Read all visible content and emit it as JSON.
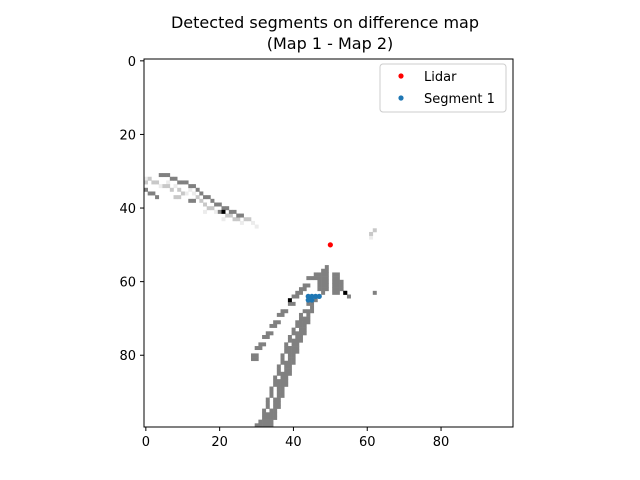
{
  "chart_data": {
    "type": "heatmap",
    "title_line1": "Detected segments on difference map",
    "title_line2": "(Map 1 - Map 2)",
    "xlabel": "",
    "ylabel": "",
    "xlim": [
      -0.5,
      99.5
    ],
    "ylim": [
      99.5,
      -0.5
    ],
    "x_ticks": [
      0,
      20,
      40,
      60,
      80
    ],
    "y_ticks": [
      0,
      20,
      40,
      60,
      80
    ],
    "x_tick_labels": [
      "0",
      "20",
      "40",
      "60",
      "80"
    ],
    "y_tick_labels": [
      "0",
      "20",
      "40",
      "60",
      "80"
    ],
    "grid": false,
    "legend_placement": "top-right",
    "legend": [
      {
        "label": "Lidar",
        "color": "#ff0000"
      },
      {
        "label": "Segment 1",
        "color": "#1f77b4"
      }
    ],
    "lidar_point": {
      "x": 50,
      "y": 50
    },
    "segment1_points": [
      [
        44,
        65
      ],
      [
        45,
        65
      ],
      [
        45,
        64
      ],
      [
        46,
        64
      ],
      [
        47,
        64
      ],
      [
        44,
        64
      ]
    ],
    "colors": {
      "dark": "#808080",
      "light": "#c8c8c8",
      "faint": "#ececec",
      "black": "#000000",
      "lidar": "#ff0000",
      "segment": "#1f77b4"
    },
    "cells": {
      "dark": [
        [
          4,
          31
        ],
        [
          5,
          31
        ],
        [
          6,
          31
        ],
        [
          7,
          32
        ],
        [
          8,
          32
        ],
        [
          9,
          33
        ],
        [
          10,
          33
        ],
        [
          11,
          33
        ],
        [
          12,
          34
        ],
        [
          13,
          34
        ],
        [
          14,
          35
        ],
        [
          15,
          36
        ],
        [
          16,
          37
        ],
        [
          17,
          37
        ],
        [
          18,
          38
        ],
        [
          19,
          39
        ],
        [
          20,
          39
        ],
        [
          21,
          40
        ],
        [
          22,
          40
        ],
        [
          23,
          41
        ],
        [
          24,
          41
        ],
        [
          25,
          42
        ],
        [
          26,
          42
        ],
        [
          0,
          35
        ],
        [
          1,
          36
        ],
        [
          2,
          36
        ],
        [
          3,
          37
        ],
        [
          12,
          38
        ],
        [
          13,
          38
        ],
        [
          20,
          41
        ],
        [
          46,
          58
        ],
        [
          46,
          59
        ],
        [
          47,
          58
        ],
        [
          47,
          59
        ],
        [
          47,
          60
        ],
        [
          47,
          61
        ],
        [
          47,
          62
        ],
        [
          48,
          57
        ],
        [
          48,
          58
        ],
        [
          48,
          59
        ],
        [
          48,
          60
        ],
        [
          48,
          61
        ],
        [
          48,
          62
        ],
        [
          48,
          63
        ],
        [
          49,
          56
        ],
        [
          49,
          57
        ],
        [
          49,
          58
        ],
        [
          49,
          59
        ],
        [
          49,
          60
        ],
        [
          49,
          61
        ],
        [
          49,
          62
        ],
        [
          44,
          59
        ],
        [
          45,
          59
        ],
        [
          43,
          61
        ],
        [
          44,
          61
        ],
        [
          42,
          62
        ],
        [
          43,
          62
        ],
        [
          41,
          63
        ],
        [
          42,
          63
        ],
        [
          40,
          64
        ],
        [
          41,
          64
        ],
        [
          39,
          66
        ],
        [
          40,
          66
        ],
        [
          37,
          68
        ],
        [
          38,
          68
        ],
        [
          36,
          69
        ],
        [
          37,
          69
        ],
        [
          35,
          71
        ],
        [
          36,
          71
        ],
        [
          34,
          72
        ],
        [
          35,
          72
        ],
        [
          33,
          74
        ],
        [
          34,
          74
        ],
        [
          32,
          75
        ],
        [
          33,
          75
        ],
        [
          31,
          77
        ],
        [
          32,
          77
        ],
        [
          30,
          78
        ],
        [
          31,
          78
        ],
        [
          29,
          80
        ],
        [
          30,
          80
        ],
        [
          29,
          81
        ],
        [
          30,
          81
        ],
        [
          51,
          58
        ],
        [
          51,
          59
        ],
        [
          51,
          60
        ],
        [
          51,
          61
        ],
        [
          51,
          62
        ],
        [
          51,
          63
        ],
        [
          52,
          58
        ],
        [
          52,
          59
        ],
        [
          52,
          60
        ],
        [
          52,
          61
        ],
        [
          52,
          62
        ],
        [
          52,
          63
        ],
        [
          53,
          60
        ],
        [
          53,
          61
        ],
        [
          53,
          62
        ],
        [
          54,
          63
        ],
        [
          55,
          64
        ],
        [
          44,
          66
        ],
        [
          43,
          68
        ],
        [
          42,
          69
        ],
        [
          41,
          71
        ],
        [
          42,
          70
        ],
        [
          41,
          72
        ],
        [
          40,
          73
        ],
        [
          40,
          74
        ],
        [
          39,
          75
        ],
        [
          39,
          76
        ],
        [
          38,
          77
        ],
        [
          38,
          78
        ],
        [
          38,
          79
        ],
        [
          37,
          80
        ],
        [
          37,
          81
        ],
        [
          37,
          82
        ],
        [
          36,
          83
        ],
        [
          36,
          84
        ],
        [
          36,
          85
        ],
        [
          35,
          86
        ],
        [
          35,
          87
        ],
        [
          35,
          88
        ],
        [
          34,
          89
        ],
        [
          34,
          90
        ],
        [
          34,
          91
        ],
        [
          33,
          92
        ],
        [
          33,
          93
        ],
        [
          33,
          94
        ],
        [
          32,
          95
        ],
        [
          32,
          96
        ],
        [
          32,
          97
        ],
        [
          31,
          98
        ],
        [
          31,
          99
        ],
        [
          45,
          66
        ],
        [
          44,
          68
        ],
        [
          43,
          70
        ],
        [
          43,
          72
        ],
        [
          42,
          73
        ],
        [
          42,
          74
        ],
        [
          41,
          75
        ],
        [
          41,
          76
        ],
        [
          40,
          77
        ],
        [
          40,
          78
        ],
        [
          40,
          79
        ],
        [
          39,
          80
        ],
        [
          39,
          81
        ],
        [
          39,
          82
        ],
        [
          38,
          83
        ],
        [
          38,
          84
        ],
        [
          38,
          85
        ],
        [
          37,
          86
        ],
        [
          37,
          87
        ],
        [
          37,
          88
        ],
        [
          36,
          89
        ],
        [
          36,
          90
        ],
        [
          36,
          91
        ],
        [
          35,
          92
        ],
        [
          35,
          93
        ],
        [
          35,
          94
        ],
        [
          34,
          95
        ],
        [
          34,
          96
        ],
        [
          34,
          97
        ],
        [
          33,
          98
        ],
        [
          33,
          99
        ],
        [
          39,
          83
        ],
        [
          39,
          84
        ],
        [
          39,
          85
        ],
        [
          38,
          86
        ],
        [
          38,
          87
        ],
        [
          38,
          88
        ],
        [
          37,
          89
        ],
        [
          37,
          90
        ],
        [
          37,
          91
        ],
        [
          36,
          92
        ],
        [
          36,
          93
        ],
        [
          36,
          94
        ],
        [
          35,
          95
        ],
        [
          35,
          96
        ],
        [
          35,
          97
        ],
        [
          34,
          98
        ],
        [
          34,
          99
        ],
        [
          40,
          80
        ],
        [
          40,
          81
        ],
        [
          40,
          82
        ],
        [
          41,
          77
        ],
        [
          41,
          78
        ],
        [
          41,
          79
        ],
        [
          42,
          75
        ],
        [
          42,
          76
        ],
        [
          43,
          73
        ],
        [
          43,
          74
        ],
        [
          44,
          70
        ],
        [
          44,
          71
        ],
        [
          45,
          67
        ],
        [
          62,
          63
        ],
        [
          30,
          99
        ],
        [
          32,
          99
        ],
        [
          32,
          98
        ],
        [
          33,
          97
        ],
        [
          36,
          88
        ],
        [
          37,
          85
        ],
        [
          38,
          82
        ],
        [
          39,
          79
        ],
        [
          40,
          76
        ],
        [
          41,
          74
        ],
        [
          42,
          72
        ],
        [
          43,
          71
        ],
        [
          44,
          69
        ],
        [
          45,
          68
        ],
        [
          46,
          65
        ],
        [
          42,
          71
        ],
        [
          39,
          78
        ],
        [
          36,
          87
        ],
        [
          33,
          96
        ]
      ],
      "light": [
        [
          2,
          33
        ],
        [
          3,
          33
        ],
        [
          0,
          33
        ],
        [
          1,
          32
        ],
        [
          5,
          34
        ],
        [
          6,
          34
        ],
        [
          7,
          35
        ],
        [
          9,
          35
        ],
        [
          10,
          36
        ],
        [
          8,
          37
        ],
        [
          9,
          37
        ],
        [
          14,
          37
        ],
        [
          15,
          38
        ],
        [
          16,
          39
        ],
        [
          18,
          40
        ],
        [
          22,
          42
        ],
        [
          23,
          42
        ],
        [
          27,
          43
        ],
        [
          28,
          43
        ],
        [
          62,
          46
        ],
        [
          61,
          47
        ],
        [
          17,
          40
        ],
        [
          24,
          43
        ],
        [
          25,
          43
        ]
      ],
      "faint": [
        [
          0,
          32
        ],
        [
          4,
          34
        ],
        [
          11,
          36
        ],
        [
          13,
          36
        ],
        [
          16,
          41
        ],
        [
          19,
          41
        ],
        [
          21,
          43
        ],
        [
          26,
          44
        ],
        [
          29,
          44
        ],
        [
          30,
          45
        ],
        [
          61,
          48
        ],
        [
          6,
          33
        ],
        [
          8,
          34
        ],
        [
          12,
          35
        ]
      ],
      "black": [
        [
          21,
          41
        ],
        [
          39,
          65
        ],
        [
          54,
          63
        ]
      ]
    }
  }
}
